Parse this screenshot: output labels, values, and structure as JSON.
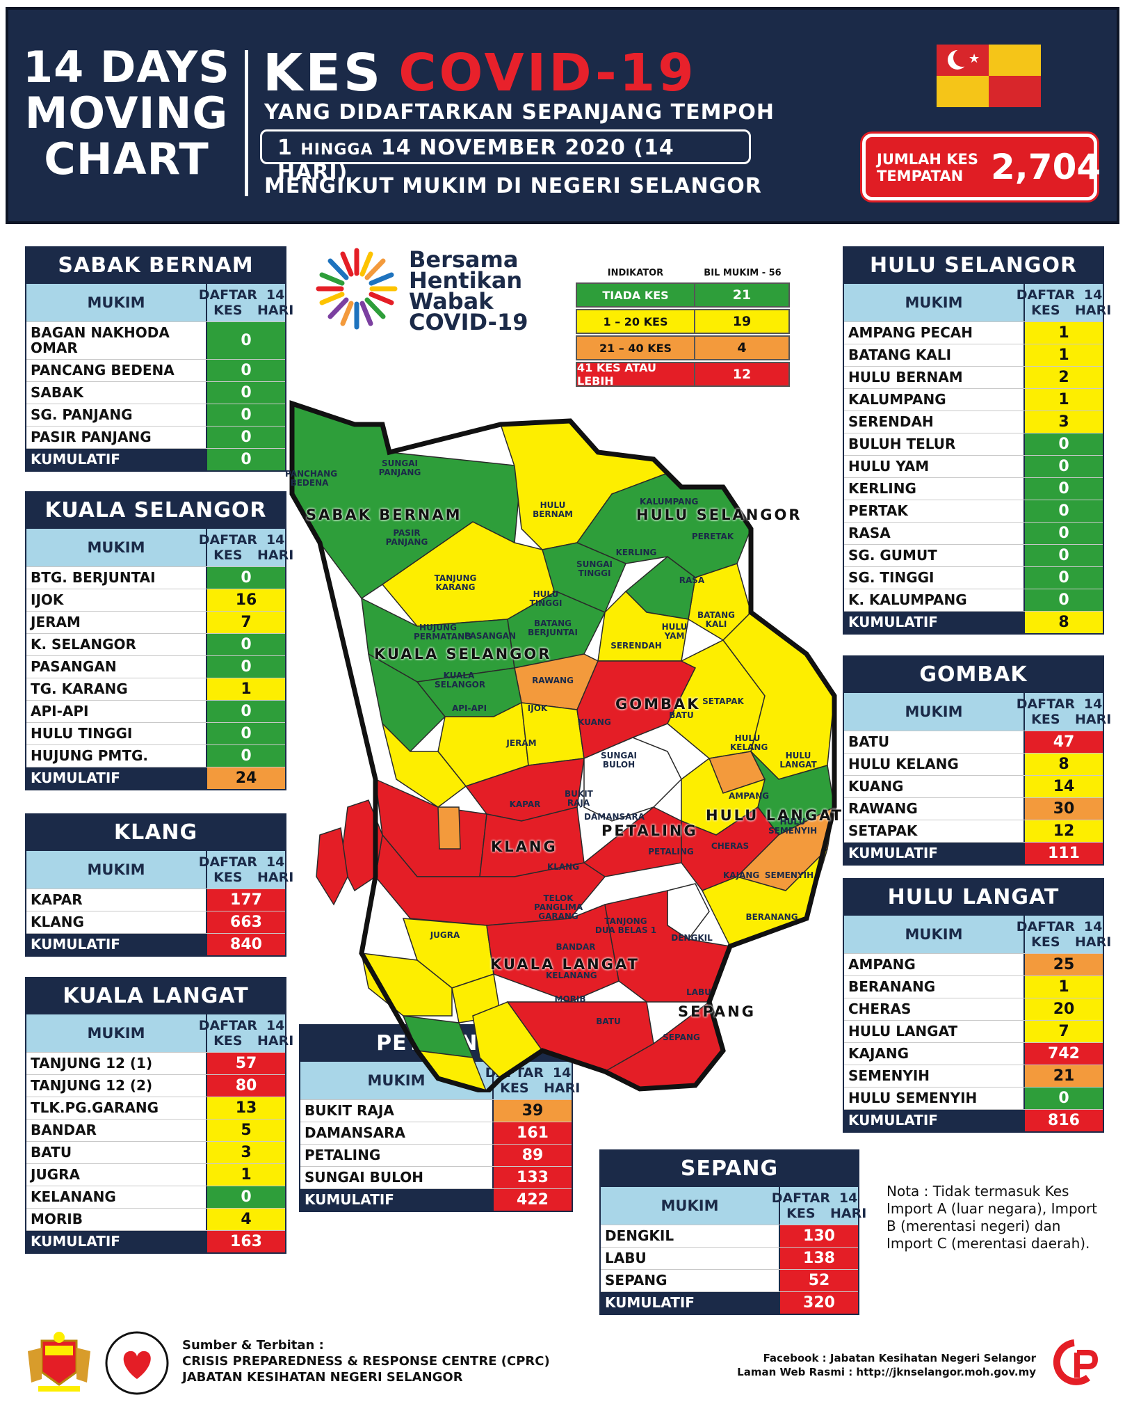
{
  "header": {
    "left_title_1": "14 DAYS",
    "left_title_2": "MOVING",
    "left_title_3": "CHART",
    "kes": "KES",
    "covid": "COVID-19",
    "line1": "YANG DIDAFTARKAN SEPANJANG TEMPOH",
    "period_a": "1 ",
    "period_b": "HINGGA",
    "period_c": " 14 NOVEMBER 2020 (14 HARI)",
    "line3": "MENGIKUT MUKIM DI NEGERI SELANGOR",
    "jumlah_label": "JUMLAH KES TEMPATAN",
    "jumlah_value": "2,704"
  },
  "colors": {
    "green": "#2e9e3a",
    "yellow": "#fdee00",
    "orange": "#f39a3c",
    "red": "#e41e26",
    "navy": "#1b2a48",
    "lightblue": "#a9d6e8"
  },
  "common": {
    "col_mukim": "MUKIM",
    "col_daftar_1": "DAFTAR KES",
    "col_daftar_2": "14 HARI",
    "kumulatif": "KUMULATIF"
  },
  "bersama": {
    "l1": "Bersama",
    "l2": "Hentikan",
    "l3": "Wabak",
    "l4": "COVID-19"
  },
  "indicator": {
    "h1": "INDIKATOR",
    "h2": "BIL MUKIM - 56",
    "rows": [
      {
        "label": "TIADA KES",
        "count": "21",
        "cls": "g"
      },
      {
        "label": "1 – 20 KES",
        "count": "19",
        "cls": "y"
      },
      {
        "label": "21 – 40 KES",
        "count": "4",
        "cls": "o"
      },
      {
        "label": "41 KES ATAU LEBIH",
        "count": "12",
        "cls": "r"
      }
    ]
  },
  "tables": {
    "sabak_bernam": {
      "title": "SABAK BERNAM",
      "rows": [
        {
          "n": "BAGAN NAKHODA OMAR",
          "v": "0",
          "c": "g",
          "tall": true
        },
        {
          "n": "PANCANG BEDENA",
          "v": "0",
          "c": "g"
        },
        {
          "n": "SABAK",
          "v": "0",
          "c": "g"
        },
        {
          "n": "SG. PANJANG",
          "v": "0",
          "c": "g"
        },
        {
          "n": "PASIR PANJANG",
          "v": "0",
          "c": "g"
        }
      ],
      "kum": {
        "v": "0",
        "c": "g"
      }
    },
    "kuala_selangor": {
      "title": "KUALA SELANGOR",
      "rows": [
        {
          "n": "BTG. BERJUNTAI",
          "v": "0",
          "c": "g"
        },
        {
          "n": "IJOK",
          "v": "16",
          "c": "y"
        },
        {
          "n": "JERAM",
          "v": "7",
          "c": "y"
        },
        {
          "n": "K. SELANGOR",
          "v": "0",
          "c": "g"
        },
        {
          "n": "PASANGAN",
          "v": "0",
          "c": "g"
        },
        {
          "n": "TG. KARANG",
          "v": "1",
          "c": "y"
        },
        {
          "n": "API-API",
          "v": "0",
          "c": "g"
        },
        {
          "n": "HULU TINGGI",
          "v": "0",
          "c": "g"
        },
        {
          "n": "HUJUNG PMTG.",
          "v": "0",
          "c": "g"
        }
      ],
      "kum": {
        "v": "24",
        "c": "o"
      }
    },
    "klang": {
      "title": "KLANG",
      "rows": [
        {
          "n": "KAPAR",
          "v": "177",
          "c": "r"
        },
        {
          "n": "KLANG",
          "v": "663",
          "c": "r"
        }
      ],
      "kum": {
        "v": "840",
        "c": "r"
      }
    },
    "kuala_langat": {
      "title": "KUALA LANGAT",
      "rows": [
        {
          "n": "TANJUNG 12 (1)",
          "v": "57",
          "c": "r"
        },
        {
          "n": "TANJUNG 12 (2)",
          "v": "80",
          "c": "r"
        },
        {
          "n": "TLK.PG.GARANG",
          "v": "13",
          "c": "y"
        },
        {
          "n": "BANDAR",
          "v": "5",
          "c": "y"
        },
        {
          "n": "BATU",
          "v": "3",
          "c": "y"
        },
        {
          "n": "JUGRA",
          "v": "1",
          "c": "y"
        },
        {
          "n": "KELANANG",
          "v": "0",
          "c": "g"
        },
        {
          "n": "MORIB",
          "v": "4",
          "c": "y"
        }
      ],
      "kum": {
        "v": "163",
        "c": "r"
      }
    },
    "petaling": {
      "title": "PETALING",
      "rows": [
        {
          "n": "BUKIT RAJA",
          "v": "39",
          "c": "o"
        },
        {
          "n": "DAMANSARA",
          "v": "161",
          "c": "r"
        },
        {
          "n": "PETALING",
          "v": "89",
          "c": "r"
        },
        {
          "n": "SUNGAI BULOH",
          "v": "133",
          "c": "r"
        }
      ],
      "kum": {
        "v": "422",
        "c": "r"
      }
    },
    "sepang": {
      "title": "SEPANG",
      "rows": [
        {
          "n": "DENGKIL",
          "v": "130",
          "c": "r"
        },
        {
          "n": "LABU",
          "v": "138",
          "c": "r"
        },
        {
          "n": "SEPANG",
          "v": "52",
          "c": "r"
        }
      ],
      "kum": {
        "v": "320",
        "c": "r"
      }
    },
    "hulu_selangor": {
      "title": "HULU SELANGOR",
      "rows": [
        {
          "n": "AMPANG PECAH",
          "v": "1",
          "c": "y"
        },
        {
          "n": "BATANG KALI",
          "v": "1",
          "c": "y"
        },
        {
          "n": "HULU BERNAM",
          "v": "2",
          "c": "y"
        },
        {
          "n": "KALUMPANG",
          "v": "1",
          "c": "y"
        },
        {
          "n": "SERENDAH",
          "v": "3",
          "c": "y"
        },
        {
          "n": "BULUH TELUR",
          "v": "0",
          "c": "g"
        },
        {
          "n": "HULU YAM",
          "v": "0",
          "c": "g"
        },
        {
          "n": "KERLING",
          "v": "0",
          "c": "g"
        },
        {
          "n": "PERTAK",
          "v": "0",
          "c": "g"
        },
        {
          "n": "RASA",
          "v": "0",
          "c": "g"
        },
        {
          "n": "SG. GUMUT",
          "v": "0",
          "c": "g"
        },
        {
          "n": "SG. TINGGI",
          "v": "0",
          "c": "g"
        },
        {
          "n": "K. KALUMPANG",
          "v": "0",
          "c": "g"
        }
      ],
      "kum": {
        "v": "8",
        "c": "y"
      }
    },
    "gombak": {
      "title": "GOMBAK",
      "rows": [
        {
          "n": "BATU",
          "v": "47",
          "c": "r"
        },
        {
          "n": "HULU KELANG",
          "v": "8",
          "c": "y"
        },
        {
          "n": "KUANG",
          "v": "14",
          "c": "y"
        },
        {
          "n": "RAWANG",
          "v": "30",
          "c": "o"
        },
        {
          "n": "SETAPAK",
          "v": "12",
          "c": "y"
        }
      ],
      "kum": {
        "v": "111",
        "c": "r"
      }
    },
    "hulu_langat": {
      "title": "HULU LANGAT",
      "rows": [
        {
          "n": "AMPANG",
          "v": "25",
          "c": "o"
        },
        {
          "n": "BERANANG",
          "v": "1",
          "c": "y"
        },
        {
          "n": "CHERAS",
          "v": "20",
          "c": "y"
        },
        {
          "n": "HULU LANGAT",
          "v": "7",
          "c": "y"
        },
        {
          "n": "KAJANG",
          "v": "742",
          "c": "r"
        },
        {
          "n": "SEMENYIH",
          "v": "21",
          "c": "o"
        },
        {
          "n": "HULU SEMENYIH",
          "v": "0",
          "c": "g"
        }
      ],
      "kum": {
        "v": "816",
        "c": "r"
      }
    }
  },
  "map": {
    "districts": [
      "SABAK BERNAM",
      "HULU SELANGOR",
      "KUALA SELANGOR",
      "GOMBAK",
      "HULU LANGAT",
      "PETALING",
      "KLANG",
      "KUALA LANGAT",
      "SEPANG"
    ],
    "mukims": [
      "PANCHANG BEDENA",
      "SUNGAI PANJANG",
      "PASIR PANJANG",
      "HULU BERNAM",
      "KALUMPANG",
      "PERETAK",
      "KERLING",
      "SUNGAI TINGGI",
      "RASA",
      "TANJUNG KARANG",
      "HULU TINGGI",
      "BATANG KALI",
      "HULU YAM",
      "BATANG BERJUNTAI",
      "PASANGAN",
      "HUJUNG PERMATANG",
      "SERENDAH",
      "RAWANG",
      "KUALA SELANGOR",
      "API-API",
      "IJOK",
      "KUANG",
      "BATU",
      "SETAPAK",
      "HULU KELANG",
      "HULU LANGAT",
      "JERAM",
      "SUNGAI BULOH",
      "KAPAR",
      "BUKIT RAJA",
      "DAMANSARA",
      "AMPANG",
      "HULU SEMENYIH",
      "CHERAS",
      "PETALING",
      "KLANG",
      "KAJANG",
      "SEMENYIH",
      "TELOK PANGLIMA GARANG",
      "TANJONG DUA BELAS 1",
      "BERANANG",
      "JUGRA",
      "BANDAR",
      "DENGKIL",
      "KELANANG",
      "MORIB",
      "LABU",
      "BATU",
      "SEPANG"
    ]
  },
  "nota": "Nota : Tidak termasuk Kes Import A (luar negara), Import B (merentasi negeri) dan Import C (merentasi daerah).",
  "footer": {
    "src1": "Sumber & Terbitan :",
    "src2": "CRISIS PREPAREDNESS & RESPONSE CENTRE (CPRC)",
    "src3": "JABATAN KESIHATAN NEGERI SELANGOR",
    "fb": "Facebook : Jabatan Kesihatan Negeri Selangor",
    "web": "Laman Web Rasmi : http://jknselangor.moh.gov.my"
  }
}
